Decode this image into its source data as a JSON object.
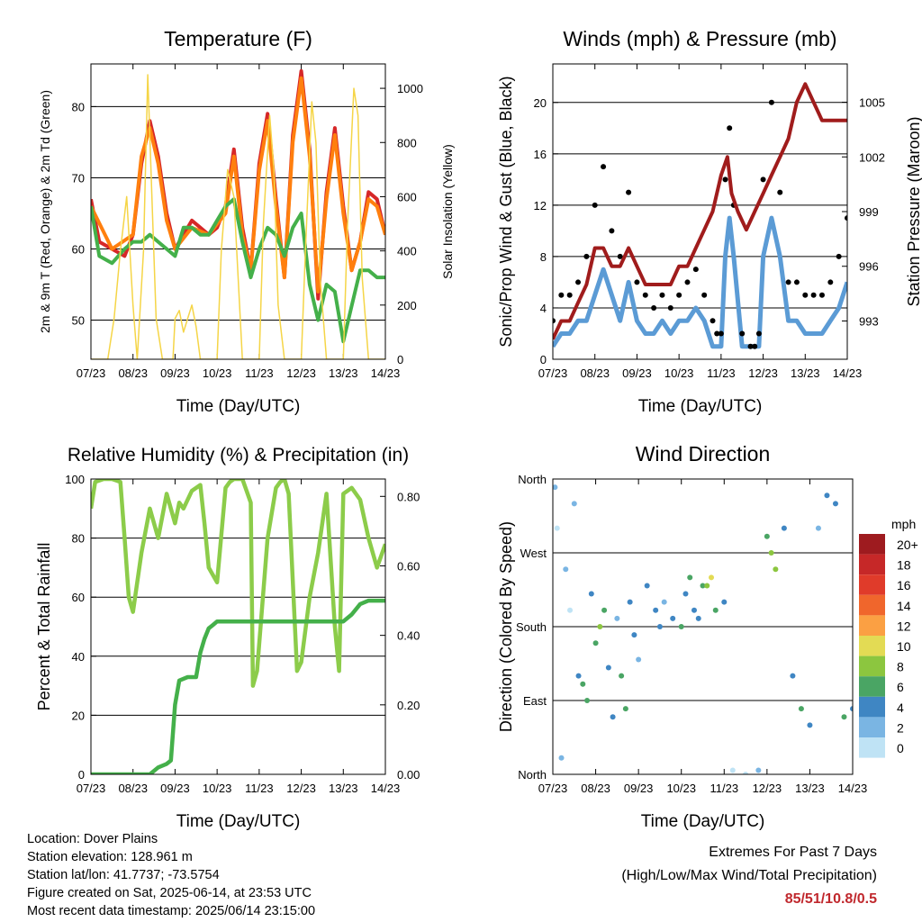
{
  "chart_data": [
    {
      "type": "line",
      "title": "Temperature (F)",
      "xlabel": "Time (Day/UTC)",
      "ylabel": "2m & 9m T (Red, Orange) & 2m Td (Green)",
      "ylabel_right": "Solar Insolation (Yellow)",
      "x_ticks": [
        "07/23",
        "08/23",
        "09/23",
        "10/23",
        "11/23",
        "12/23",
        "13/23",
        "14/23"
      ],
      "y_ticks": [
        "50",
        "60",
        "70",
        "80"
      ],
      "y_ticks_right": [
        "0",
        "200",
        "400",
        "600",
        "800",
        "1000"
      ],
      "ylim": [
        44.5,
        86
      ],
      "ylim_right": [
        0,
        1090
      ],
      "grid": true,
      "series": [
        {
          "color": "#d62728",
          "x": [
            0,
            0.2,
            0.5,
            0.8,
            1.0,
            1.2,
            1.4,
            1.6,
            1.8,
            2.0,
            2.2,
            2.4,
            2.6,
            2.8,
            3.0,
            3.2,
            3.4,
            3.6,
            3.8,
            4.0,
            4.2,
            4.4,
            4.6,
            4.8,
            5.0,
            5.2,
            5.4,
            5.6,
            5.8,
            6.0,
            6.2,
            6.4,
            6.6,
            6.8,
            7.0
          ],
          "values": [
            67,
            61,
            60,
            59,
            62,
            72,
            78,
            73,
            65,
            60,
            62,
            64,
            63,
            62,
            63,
            66,
            74,
            63,
            57,
            72,
            79,
            67,
            56,
            76,
            85,
            74,
            53,
            68,
            77,
            66,
            57,
            61,
            68,
            67,
            62
          ]
        },
        {
          "color": "#ff7f0e",
          "x": [
            0,
            0.5,
            1.0,
            1.2,
            1.4,
            1.6,
            1.8,
            2.0,
            2.4,
            2.8,
            3.2,
            3.4,
            3.6,
            3.8,
            4.0,
            4.2,
            4.4,
            4.6,
            4.8,
            5.0,
            5.2,
            5.4,
            5.6,
            5.8,
            6.0,
            6.2,
            6.4,
            6.6,
            6.8,
            7.0
          ],
          "values": [
            66,
            60,
            62,
            73,
            77,
            72,
            64,
            60,
            63,
            62,
            65,
            73,
            62,
            57,
            71,
            78,
            66,
            56,
            75,
            84,
            73,
            54,
            67,
            76,
            65,
            57,
            61,
            67,
            66,
            62
          ]
        },
        {
          "color": "#44b04a",
          "x": [
            0,
            0.2,
            0.5,
            0.8,
            1.0,
            1.2,
            1.4,
            1.6,
            1.8,
            2.0,
            2.2,
            2.4,
            2.6,
            2.8,
            3.0,
            3.2,
            3.4,
            3.6,
            3.8,
            4.0,
            4.2,
            4.4,
            4.6,
            4.8,
            5.0,
            5.2,
            5.4,
            5.6,
            5.8,
            6.0,
            6.2,
            6.4,
            6.6,
            6.8,
            7.0
          ],
          "values": [
            66,
            59,
            58,
            60,
            61,
            61,
            62,
            61,
            60,
            59,
            63,
            63,
            62,
            62,
            64,
            66,
            67,
            61,
            56,
            60,
            63,
            62,
            59,
            63,
            65,
            55,
            50,
            55,
            54,
            47,
            52,
            57,
            57,
            56,
            56
          ]
        },
        {
          "color": "#f5d547",
          "x": [
            0,
            0.4,
            0.55,
            0.7,
            0.85,
            1.0,
            1.1,
            1.25,
            1.35,
            1.45,
            1.55,
            1.7,
            1.8,
            1.95,
            2.0,
            2.1,
            2.2,
            2.3,
            2.4,
            2.5,
            2.6,
            2.7,
            2.8,
            2.95,
            3.0,
            3.1,
            3.25,
            3.4,
            3.5,
            3.6,
            3.7,
            3.85,
            4.0,
            4.1,
            4.25,
            4.35,
            4.45,
            4.6,
            4.7,
            4.85,
            5.0,
            5.1,
            5.25,
            5.35,
            5.45,
            5.6,
            5.7,
            5.85,
            6.0,
            6.1,
            6.25,
            6.35,
            6.45,
            6.6,
            6.7,
            6.85,
            7.0
          ],
          "values": [
            0,
            0,
            150,
            400,
            600,
            200,
            0,
            400,
            1050,
            600,
            150,
            0,
            0,
            0,
            150,
            180,
            100,
            150,
            200,
            120,
            0,
            0,
            0,
            0,
            0,
            400,
            700,
            600,
            300,
            0,
            0,
            0,
            0,
            500,
            900,
            700,
            200,
            0,
            0,
            0,
            0,
            400,
            950,
            800,
            300,
            0,
            0,
            0,
            0,
            500,
            1000,
            900,
            300,
            0,
            0,
            0,
            0
          ]
        }
      ]
    },
    {
      "type": "scatter",
      "title": "Winds (mph) & Pressure (mb)",
      "xlabel": "Time (Day/UTC)",
      "ylabel": "Sonic/Prop Wind & Gust (Blue, Black)",
      "ylabel_right": "Station Pressure (Maroon)",
      "x_ticks": [
        "07/23",
        "08/23",
        "09/23",
        "10/23",
        "11/23",
        "12/23",
        "13/23",
        "14/23"
      ],
      "y_ticks": [
        "0",
        "4",
        "8",
        "12",
        "16",
        "20"
      ],
      "y_ticks_right": [
        "993",
        "996",
        "999",
        "1002",
        "1005"
      ],
      "ylim": [
        0,
        23
      ],
      "ylim_right": [
        990.9,
        1007.1
      ],
      "grid": true,
      "series": [
        {
          "color": "#5b9bd5",
          "x": [
            0,
            0.2,
            0.4,
            0.6,
            0.8,
            1.0,
            1.2,
            1.4,
            1.6,
            1.8,
            2.0,
            2.2,
            2.4,
            2.6,
            2.8,
            3.0,
            3.2,
            3.4,
            3.6,
            3.8,
            3.9,
            4.0,
            4.1,
            4.2,
            4.3,
            4.5,
            4.7,
            4.8,
            4.9,
            5.0,
            5.2,
            5.4,
            5.6,
            5.8,
            6.0,
            6.2,
            6.4,
            6.6,
            6.8,
            7.0
          ],
          "values": [
            1,
            2,
            2,
            3,
            3,
            5,
            7,
            5,
            3,
            6,
            3,
            2,
            2,
            3,
            2,
            3,
            3,
            4,
            3,
            1,
            1,
            1,
            8,
            11,
            8,
            1,
            1,
            1,
            1,
            8,
            11,
            8,
            3,
            3,
            2,
            2,
            2,
            3,
            4,
            6
          ]
        },
        {
          "color": "#000000",
          "x": [
            0,
            0.2,
            0.4,
            0.6,
            0.8,
            1.0,
            1.2,
            1.4,
            1.6,
            1.8,
            2.0,
            2.2,
            2.4,
            2.6,
            2.8,
            3.0,
            3.2,
            3.4,
            3.6,
            3.8,
            3.9,
            4.0,
            4.1,
            4.2,
            4.3,
            4.5,
            4.7,
            4.8,
            4.9,
            5.0,
            5.2,
            5.4,
            5.6,
            5.8,
            6.0,
            6.2,
            6.4,
            6.6,
            6.8,
            7.0
          ],
          "values": [
            3,
            5,
            5,
            6,
            8,
            12,
            15,
            10,
            8,
            13,
            6,
            5,
            4,
            5,
            4,
            5,
            6,
            7,
            5,
            3,
            2,
            2,
            14,
            18,
            12,
            2,
            1,
            1,
            2,
            14,
            20,
            13,
            6,
            6,
            5,
            5,
            5,
            6,
            8,
            11
          ]
        },
        {
          "color": "#a01c1c",
          "x": [
            0,
            0.2,
            0.4,
            0.6,
            0.8,
            1.0,
            1.2,
            1.4,
            1.6,
            1.8,
            2.0,
            2.2,
            2.4,
            2.6,
            2.8,
            3.0,
            3.2,
            3.4,
            3.6,
            3.8,
            4.0,
            4.15,
            4.25,
            4.4,
            4.6,
            4.8,
            5.0,
            5.2,
            5.4,
            5.6,
            5.8,
            6.0,
            6.2,
            6.4,
            6.6,
            6.8,
            7.0
          ],
          "values": [
            992,
            993,
            993,
            994,
            995,
            997,
            997,
            996,
            996,
            997,
            996,
            995,
            995,
            995,
            995,
            996,
            996,
            997,
            998,
            999,
            1001,
            1002,
            1000,
            999,
            998,
            999,
            1000,
            1001,
            1002,
            1003,
            1005,
            1006,
            1005,
            1004,
            1004,
            1004,
            1004
          ]
        }
      ]
    },
    {
      "type": "line",
      "title": "Relative Humidity (%) & Precipitation (in)",
      "xlabel": "Time (Day/UTC)",
      "ylabel": "Percent & Total Rainfall",
      "x_ticks": [
        "07/23",
        "08/23",
        "09/23",
        "10/23",
        "11/23",
        "12/23",
        "13/23",
        "14/23"
      ],
      "y_ticks": [
        "0",
        "20",
        "40",
        "60",
        "80",
        "100"
      ],
      "y_ticks_right": [
        "0.00",
        "0.20",
        "0.40",
        "0.60",
        "0.80"
      ],
      "ylim": [
        0,
        100
      ],
      "ylim_right": [
        0,
        0.85
      ],
      "grid": true,
      "series": [
        {
          "color": "#8ccc4a",
          "x": [
            0,
            0.1,
            0.3,
            0.5,
            0.7,
            0.8,
            0.9,
            1.0,
            1.2,
            1.4,
            1.6,
            1.8,
            2.0,
            2.1,
            2.2,
            2.4,
            2.6,
            2.7,
            2.8,
            3.0,
            3.2,
            3.3,
            3.4,
            3.6,
            3.8,
            3.85,
            3.95,
            4.2,
            4.4,
            4.5,
            4.6,
            4.7,
            4.9,
            5.0,
            5.2,
            5.4,
            5.6,
            5.8,
            5.9,
            6.0,
            6.2,
            6.4,
            6.6,
            6.8,
            7.0
          ],
          "values": [
            90,
            99,
            100,
            100,
            99,
            80,
            60,
            55,
            75,
            90,
            80,
            95,
            85,
            92,
            90,
            96,
            98,
            85,
            70,
            65,
            97,
            99,
            100,
            100,
            92,
            30,
            35,
            80,
            97,
            99,
            100,
            95,
            35,
            38,
            60,
            75,
            95,
            50,
            35,
            95,
            97,
            93,
            80,
            70,
            78
          ]
        },
        {
          "color": "#44b04a",
          "x": [
            0,
            1.0,
            1.4,
            1.6,
            1.8,
            1.9,
            2.0,
            2.1,
            2.3,
            2.5,
            2.6,
            2.7,
            2.8,
            2.9,
            3.0,
            3.2,
            3.5,
            4.0,
            4.5,
            5.0,
            5.5,
            6.0,
            6.2,
            6.4,
            6.6,
            6.8,
            7.0
          ],
          "values": [
            0,
            0,
            0,
            0.02,
            0.03,
            0.04,
            0.2,
            0.27,
            0.28,
            0.28,
            0.35,
            0.39,
            0.42,
            0.43,
            0.44,
            0.44,
            0.44,
            0.44,
            0.44,
            0.44,
            0.44,
            0.44,
            0.46,
            0.49,
            0.5,
            0.5,
            0.5
          ]
        }
      ]
    },
    {
      "type": "scatter",
      "title": "Wind Direction",
      "xlabel": "Time (Day/UTC)",
      "ylabel": "Direction (Colored By Speed)",
      "x_ticks": [
        "07/23",
        "08/23",
        "09/23",
        "10/23",
        "11/23",
        "12/23",
        "13/23",
        "14/23"
      ],
      "y_ticks": [
        "North",
        "East",
        "South",
        "West",
        "North"
      ],
      "ylim": [
        0,
        360
      ],
      "grid": true,
      "legend": {
        "title": "mph",
        "labels": [
          "20+",
          "18",
          "16",
          "14",
          "12",
          "10",
          "8",
          "6",
          "4",
          "2",
          "0"
        ],
        "colors": [
          "#9e1b1f",
          "#c62828",
          "#e03b2a",
          "#f0662c",
          "#fba043",
          "#e3db54",
          "#8cc63f",
          "#4aa564",
          "#3f86c3",
          "#7ab5e3",
          "#bfe3f5"
        ],
        "position": "right"
      },
      "series": [
        {
          "x": [
            0.05,
            0.1,
            0.2,
            0.3,
            0.4,
            0.5,
            0.6,
            0.7,
            0.8,
            0.9,
            1.0,
            1.1,
            1.2,
            1.3,
            1.4,
            1.5,
            1.6,
            1.7,
            1.8,
            1.9,
            2.0,
            2.2,
            2.4,
            2.5,
            2.6,
            2.8,
            3.0,
            3.1,
            3.2,
            3.3,
            3.4,
            3.5,
            3.6,
            3.7,
            3.8,
            4.0,
            4.2,
            4.5,
            4.8,
            5.0,
            5.1,
            5.2,
            5.4,
            5.6,
            5.8,
            6.0,
            6.2,
            6.4,
            6.6,
            6.8,
            7.0
          ],
          "y": [
            350,
            300,
            20,
            250,
            200,
            330,
            120,
            110,
            90,
            220,
            160,
            180,
            200,
            130,
            70,
            190,
            120,
            80,
            210,
            170,
            140,
            230,
            200,
            180,
            210,
            190,
            180,
            220,
            240,
            200,
            190,
            230,
            230,
            240,
            200,
            210,
            5,
            0,
            5,
            290,
            270,
            250,
            300,
            120,
            80,
            60,
            300,
            340,
            330,
            70,
            80
          ],
          "speed": [
            1,
            0,
            2,
            1,
            0,
            1,
            4,
            6,
            5,
            3,
            6,
            7,
            6,
            4,
            3,
            2,
            5,
            6,
            4,
            3,
            2,
            4,
            3,
            4,
            2,
            3,
            5,
            4,
            6,
            3,
            4,
            5,
            8,
            9,
            6,
            3,
            0,
            0,
            1,
            6,
            7,
            8,
            3,
            4,
            5,
            3,
            2,
            4,
            3,
            5,
            4
          ]
        }
      ]
    }
  ],
  "info": {
    "location": "Location: Dover Plains",
    "elevation": "Station elevation: 128.961 m",
    "latlon": "Station lat/lon: 41.7737; -73.5754",
    "created": "Figure created on Sat, 2025-06-14, at 23:53 UTC",
    "recent": "Most recent data timestamp: 2025/06/14 23:15:00"
  },
  "extremes": {
    "title": "Extremes For Past 7 Days",
    "subtitle": "(High/Low/Max Wind/Total Precipitation)",
    "values": "85/51/10.8/0.5"
  }
}
